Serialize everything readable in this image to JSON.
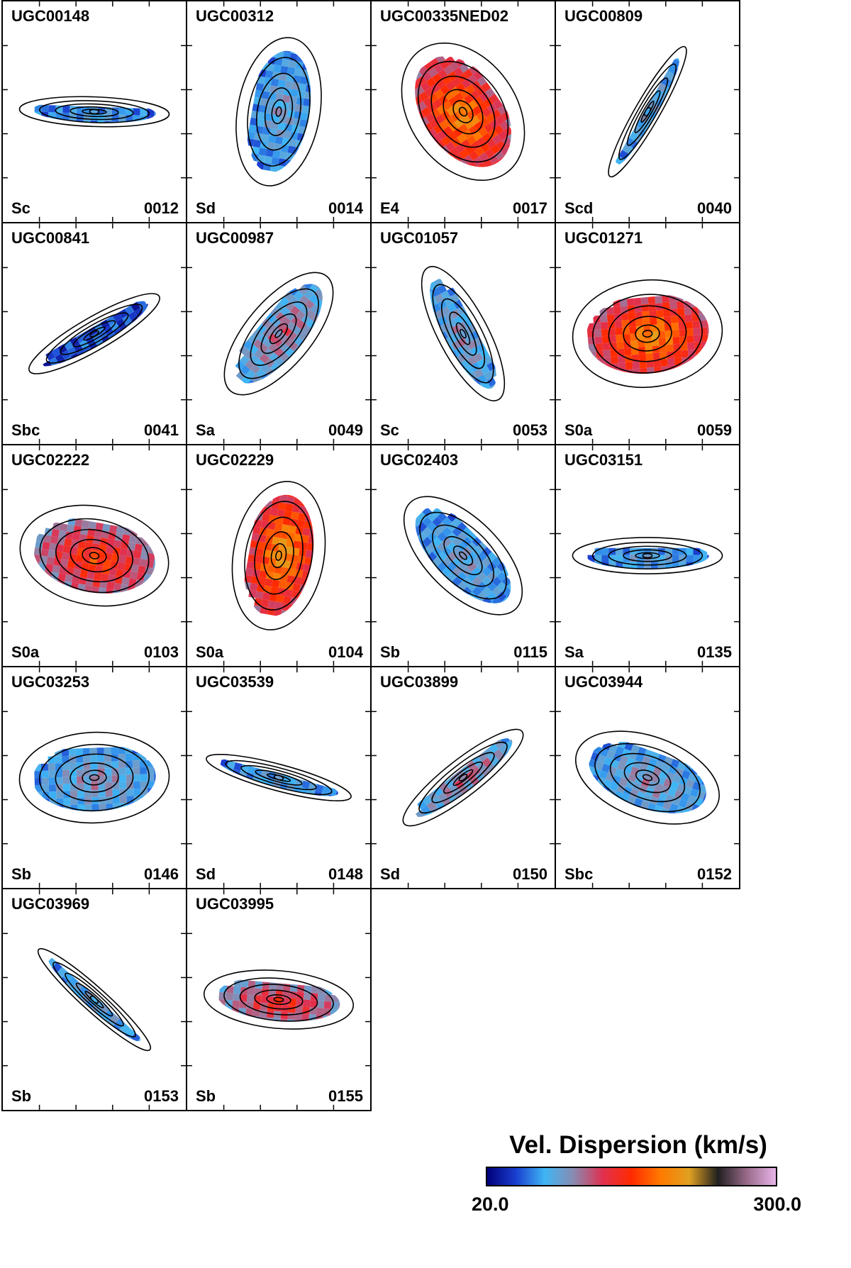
{
  "chart_data": {
    "type": "heatmap",
    "title": "",
    "colorbar": {
      "label": "Vel. Dispersion (km/s)",
      "min": 20.0,
      "max": 300.0,
      "min_label": "20.0",
      "max_label": "300.0",
      "colors": [
        "#00007a",
        "#1a3fd0",
        "#3fb6f5",
        "#8a8ab0",
        "#e03050",
        "#ff2a00",
        "#ff7a00",
        "#e0a020",
        "#202020",
        "#9a6a8a",
        "#e8b4e8"
      ]
    },
    "panels": [
      {
        "name": "UGC00148",
        "type": "Sc",
        "id": "0012",
        "pa": -2,
        "ar": 0.18,
        "dispersion": 0.18
      },
      {
        "name": "UGC00312",
        "type": "Sd",
        "id": "0014",
        "pa": 80,
        "ar": 0.5,
        "dispersion": 0.22
      },
      {
        "name": "UGC00335NED02",
        "type": "E4",
        "id": "0017",
        "pa": -55,
        "ar": 0.65,
        "dispersion": 0.55
      },
      {
        "name": "UGC00809",
        "type": "Scd",
        "id": "0040",
        "pa": 60,
        "ar": 0.15,
        "dispersion": 0.22
      },
      {
        "name": "UGC00841",
        "type": "Sbc",
        "id": "0041",
        "pa": 30,
        "ar": 0.2,
        "dispersion": 0.1
      },
      {
        "name": "UGC00987",
        "type": "Sa",
        "id": "0049",
        "pa": 50,
        "ar": 0.4,
        "dispersion": 0.3
      },
      {
        "name": "UGC01057",
        "type": "Sc",
        "id": "0053",
        "pa": -62,
        "ar": 0.3,
        "dispersion": 0.25
      },
      {
        "name": "UGC01271",
        "type": "S0a",
        "id": "0059",
        "pa": 5,
        "ar": 0.65,
        "dispersion": 0.55
      },
      {
        "name": "UGC02222",
        "type": "S0a",
        "id": "0103",
        "pa": -10,
        "ar": 0.6,
        "dispersion": 0.45
      },
      {
        "name": "UGC02229",
        "type": "S0a",
        "id": "0104",
        "pa": 80,
        "ar": 0.55,
        "dispersion": 0.58
      },
      {
        "name": "UGC02403",
        "type": "Sb",
        "id": "0115",
        "pa": -45,
        "ar": 0.45,
        "dispersion": 0.22
      },
      {
        "name": "UGC03151",
        "type": "Sa",
        "id": "0135",
        "pa": 0,
        "ar": 0.22,
        "dispersion": 0.2
      },
      {
        "name": "UGC03253",
        "type": "Sb",
        "id": "0146",
        "pa": 2,
        "ar": 0.55,
        "dispersion": 0.25
      },
      {
        "name": "UGC03539",
        "type": "Sd",
        "id": "0148",
        "pa": -15,
        "ar": 0.16,
        "dispersion": 0.2
      },
      {
        "name": "UGC03899",
        "type": "Sd",
        "id": "0150",
        "pa": 38,
        "ar": 0.22,
        "dispersion": 0.3
      },
      {
        "name": "UGC03944",
        "type": "Sbc",
        "id": "0152",
        "pa": -20,
        "ar": 0.5,
        "dispersion": 0.25
      },
      {
        "name": "UGC03969",
        "type": "Sb",
        "id": "0153",
        "pa": -42,
        "ar": 0.14,
        "dispersion": 0.22
      },
      {
        "name": "UGC03995",
        "type": "Sb",
        "id": "0155",
        "pa": -5,
        "ar": 0.35,
        "dispersion": 0.4
      }
    ]
  }
}
